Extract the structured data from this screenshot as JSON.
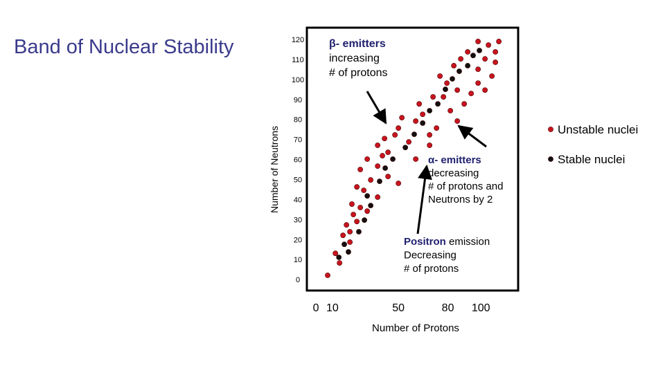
{
  "chart_data": {
    "type": "scatter",
    "title": "Band of Nuclear Stability",
    "xlabel": "Number of Protons",
    "ylabel": "Number of Neutrons",
    "xlim": [
      -5.5,
      122.6
    ],
    "ylim": [
      -5.5,
      125.9
    ],
    "xticks": [
      0,
      10,
      50,
      80,
      100
    ],
    "yticks": [
      0,
      10,
      20,
      30,
      40,
      50,
      60,
      70,
      80,
      90,
      100,
      110,
      120
    ],
    "legend": "right",
    "series": [
      {
        "name": "Unstable nuclei",
        "color": "#c8141e",
        "x": [
          7.1,
          11.8,
          16.4,
          20.6,
          18.5,
          22.7,
          26.9,
          21.8,
          29.0,
          24.8,
          33.2,
          26.9,
          37.4,
          31.1,
          40.3,
          43.7,
          37.4,
          47.9,
          41.6,
          50.0,
          56.3,
          60.5,
          52.1,
          64.7,
          68.9,
          73.1,
          62.6,
          71.0,
          77.3,
          81.5,
          85.7,
          79.4,
          75.2,
          85.7,
          89.9,
          94.1,
          83.6,
          87.8,
          98.3,
          102.5,
          98.3,
          102.5,
          108.8,
          106.7,
          92.0,
          98.3,
          104.6,
          108.8,
          110.9,
          60.5,
          68.9,
          43.7,
          50.0,
          37.4,
          20.6,
          14.3,
          24.8,
          31.1
        ],
        "values": [
          2.1,
          13.1,
          22.1,
          23.9,
          27.3,
          32.5,
          36.0,
          37.7,
          44.6,
          46.3,
          49.8,
          55.0,
          56.7,
          60.2,
          61.9,
          63.6,
          67.1,
          72.3,
          70.5,
          75.7,
          68.8,
          79.2,
          80.9,
          82.6,
          72.3,
          75.7,
          87.8,
          91.3,
          91.3,
          84.4,
          79.2,
          98.2,
          101.7,
          94.7,
          87.8,
          93.0,
          106.9,
          110.3,
          98.2,
          94.7,
          105.1,
          110.3,
          108.6,
          101.7,
          113.8,
          119.0,
          117.2,
          113.8,
          119.0,
          60.2,
          67.1,
          51.5,
          48.1,
          41.2,
          18.7,
          8.3,
          29.0,
          34.2
        ]
      },
      {
        "name": "Stable nuclei",
        "color": "#111111",
        "x": [
          17.2,
          13.9,
          19.7,
          26.0,
          29.4,
          33.2,
          31.1,
          38.6,
          42.0,
          46.6,
          54.2,
          59.6,
          64.7,
          68.9,
          73.9,
          78.5,
          82.7,
          86.9,
          92.0,
          95.3,
          99.1
        ],
        "values": [
          17.6,
          11.1,
          13.8,
          23.9,
          29.7,
          37.0,
          41.8,
          49.1,
          55.7,
          60.2,
          66.0,
          72.6,
          78.2,
          84.4,
          87.8,
          95.1,
          100.3,
          104.1,
          106.9,
          112.0,
          114.5
        ]
      }
    ],
    "annotations": [
      {
        "heading": "β- emitters",
        "lines": [
          "increasing",
          "# of protons"
        ]
      },
      {
        "heading": "α- emitters",
        "lines": [
          "decreasing",
          "# of protons and",
          "Neutrons by 2"
        ]
      },
      {
        "heading": "Positron",
        "heading_rest": " emission",
        "lines": [
          "Decreasing",
          " # of protons"
        ]
      }
    ]
  }
}
